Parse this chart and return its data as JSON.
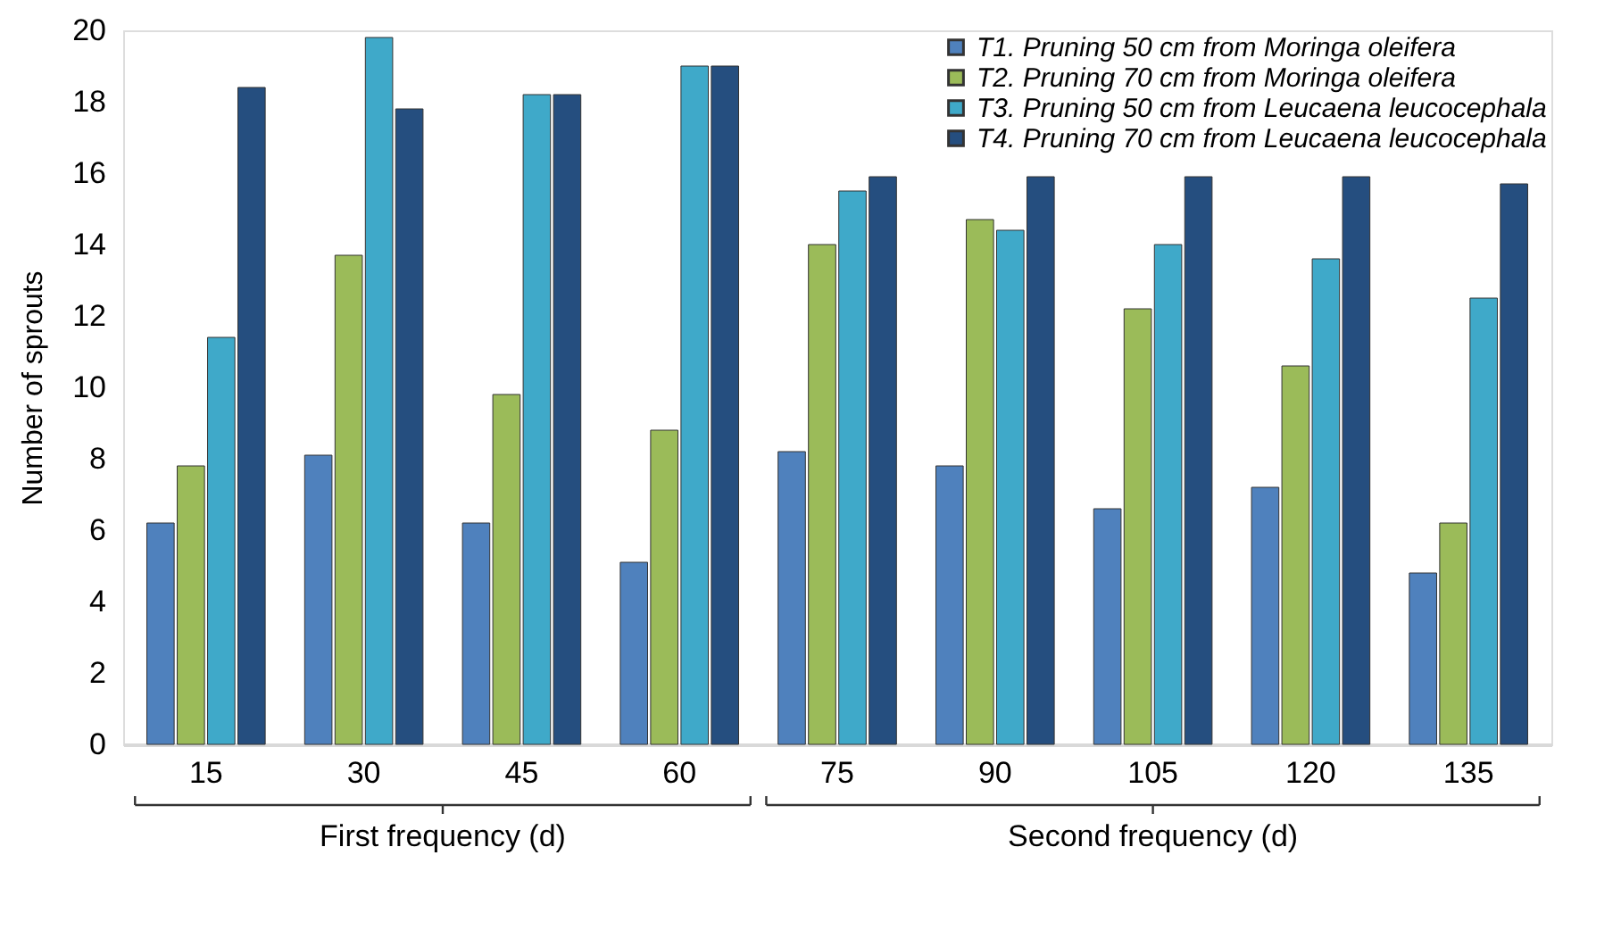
{
  "chart_data": {
    "type": "bar",
    "ylabel": "Number of sprouts",
    "categories": [
      "15",
      "30",
      "45",
      "60",
      "75",
      "90",
      "105",
      "120",
      "135"
    ],
    "series": [
      {
        "name": "T1. Pruning 50 cm from Moringa oleifera",
        "color": "#4f81bd",
        "values": [
          6.2,
          8.1,
          6.2,
          5.1,
          8.2,
          7.8,
          6.6,
          7.2,
          4.8
        ]
      },
      {
        "name": "T2. Pruning 70 cm from Moringa oleifera",
        "color": "#9bbb59",
        "values": [
          7.8,
          13.7,
          9.8,
          8.8,
          14.0,
          14.7,
          12.2,
          10.6,
          6.2
        ]
      },
      {
        "name": "T3. Pruning 50 cm from Leucaena leucocephala",
        "color": "#3fa9c9",
        "values": [
          11.4,
          19.8,
          18.2,
          19.0,
          15.5,
          14.4,
          14.0,
          13.6,
          12.5
        ]
      },
      {
        "name": "T4. Pruning 70 cm from Leucaena leucocephala",
        "color": "#254e7f",
        "values": [
          18.4,
          17.8,
          18.2,
          19.0,
          15.9,
          15.9,
          15.9,
          15.9,
          15.7
        ]
      }
    ],
    "ylim": [
      0,
      20
    ],
    "yticks": [
      0,
      2,
      4,
      6,
      8,
      10,
      12,
      14,
      16,
      18,
      20
    ],
    "grid": false,
    "legend": "top right",
    "annotations": [
      "First frequency (d)",
      "Second frequency (d)"
    ]
  }
}
